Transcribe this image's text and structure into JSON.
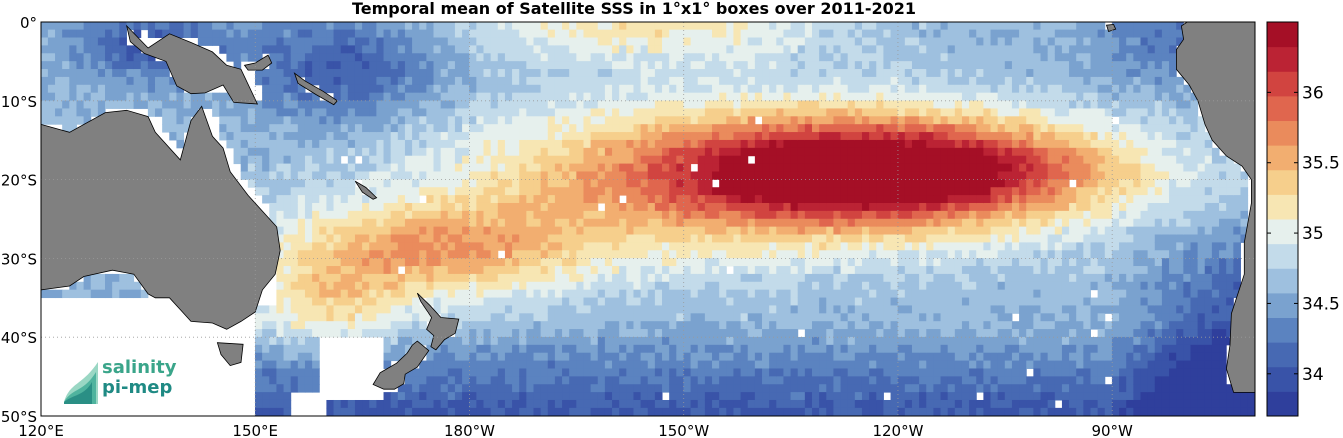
{
  "title": "Temporal mean of Satellite SSS in 1°x1° boxes over 2011-2021",
  "map": {
    "lon_range": [
      120,
      290
    ],
    "lat_range": [
      -50,
      0
    ],
    "lon_ticks": [
      "120°E",
      "150°E",
      "180°W",
      "150°W",
      "120°W",
      "90°W"
    ],
    "lat_ticks": [
      "0°",
      "10°S",
      "20°S",
      "30°S",
      "40°S",
      "50°S"
    ],
    "grid": true,
    "land_color": "#808080",
    "missing_color": "#ffffff"
  },
  "colorbar": {
    "min": 33.7,
    "max": 36.5,
    "ticks": [
      "34",
      "34.5",
      "35",
      "35.5",
      "36"
    ],
    "colors": [
      "#2f3f9c",
      "#3953a8",
      "#4769b3",
      "#5b83c0",
      "#7aa2cf",
      "#9ec0df",
      "#c3dbea",
      "#e6f0ed",
      "#f7e6b3",
      "#f6cf8c",
      "#f2ae70",
      "#ea8b5c",
      "#e0664e",
      "#d14440",
      "#bb2334",
      "#a50f26"
    ]
  },
  "logo": {
    "line1": "salinity",
    "line2": "pi-mep"
  }
}
